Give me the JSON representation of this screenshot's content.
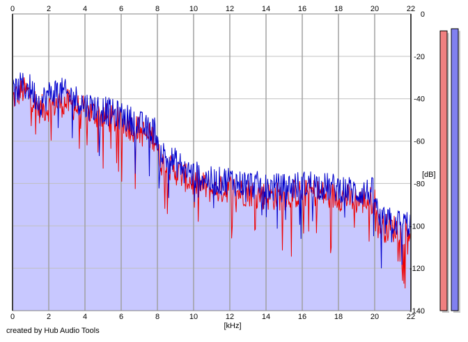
{
  "chart_data": {
    "type": "area",
    "title": "",
    "xlabel": "[kHz]",
    "ylabel": "[dB]",
    "xlim": [
      0,
      22
    ],
    "ylim": [
      -140,
      0
    ],
    "x_ticks": [
      0,
      2,
      4,
      6,
      8,
      10,
      12,
      14,
      16,
      18,
      20,
      22
    ],
    "y_ticks": [
      0,
      -20,
      -40,
      -60,
      -80,
      -100,
      -120,
      -140
    ],
    "x_tick_labels": [
      "0",
      "2",
      "4",
      "6",
      "8",
      "10",
      "12",
      "14",
      "16",
      "18",
      "20",
      "22"
    ],
    "y_tick_labels": [
      "0",
      "-20",
      "-40",
      "-60",
      "-80",
      "-100",
      "-120",
      "-140"
    ],
    "grid": true,
    "series": [
      {
        "color": "#ee0000",
        "envelope_x": [
          0,
          0.5,
          1,
          1.5,
          2,
          2.5,
          3,
          3.5,
          4,
          4.5,
          5,
          5.5,
          6,
          6.5,
          7,
          7.5,
          7.9,
          8.1,
          8.5,
          9,
          9.5,
          10,
          10.5,
          11,
          11.5,
          12,
          12.5,
          13,
          13.5,
          14,
          14.5,
          15,
          15.5,
          16,
          16.5,
          17,
          17.5,
          18,
          18.5,
          19,
          19.5,
          20,
          20.2,
          20.5,
          21,
          21.5,
          22
        ],
        "envelope_y": [
          -40,
          -36,
          -38,
          -45,
          -44,
          -42,
          -42,
          -44,
          -46,
          -47,
          -48,
          -50,
          -51,
          -53,
          -55,
          -58,
          -58,
          -68,
          -73,
          -74,
          -77,
          -80,
          -81,
          -83,
          -83,
          -82,
          -84,
          -84,
          -85,
          -86,
          -86,
          -86,
          -85,
          -85,
          -84,
          -85,
          -86,
          -86,
          -87,
          -88,
          -88,
          -88,
          -100,
          -101,
          -101,
          -102,
          -102
        ]
      },
      {
        "color": "#0000cc",
        "envelope_x": [
          0,
          0.5,
          1,
          1.5,
          2,
          2.5,
          3,
          3.5,
          4,
          4.5,
          5,
          5.5,
          6,
          6.5,
          7,
          7.5,
          7.9,
          8.1,
          8.5,
          9,
          9.5,
          10,
          10.5,
          11,
          11.5,
          12,
          12.5,
          13,
          13.5,
          14,
          14.5,
          15,
          15.5,
          16,
          16.5,
          17,
          17.5,
          18,
          18.5,
          19,
          19.5,
          20,
          20.2,
          20.5,
          21,
          21.5,
          22
        ],
        "envelope_y": [
          -38,
          -34,
          -35,
          -42,
          -38,
          -36,
          -38,
          -40,
          -43,
          -44,
          -45,
          -47,
          -48,
          -50,
          -52,
          -55,
          -55,
          -64,
          -68,
          -70,
          -73,
          -76,
          -77,
          -79,
          -79,
          -78,
          -80,
          -80,
          -81,
          -82,
          -82,
          -82,
          -81,
          -81,
          -80,
          -81,
          -82,
          -82,
          -83,
          -84,
          -84,
          -84,
          -97,
          -98,
          -98,
          -99,
          -99
        ]
      }
    ],
    "channel_meters": [
      {
        "color": "#f08080",
        "level_db": -8
      },
      {
        "color": "#8080f0",
        "level_db": -7
      }
    ],
    "fill_color": "#c8c8ff"
  },
  "footer": {
    "credit": "created by Hub Audio Tools"
  }
}
